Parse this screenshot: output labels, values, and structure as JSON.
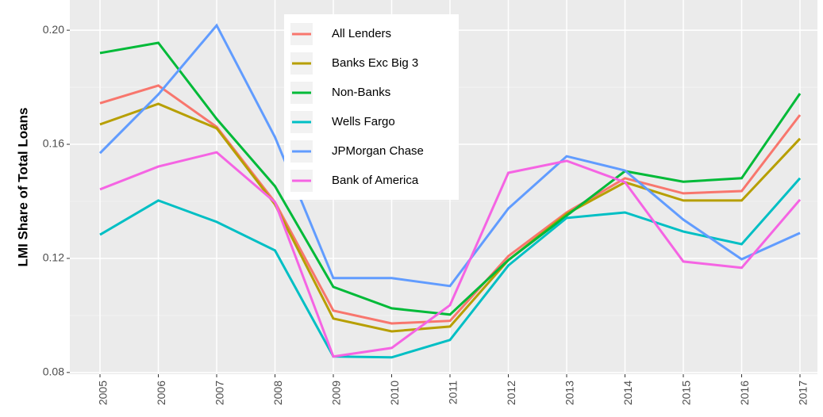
{
  "chart_data": {
    "type": "line",
    "y_label": "LMI Share of Total Loans",
    "categories": [
      "2005",
      "2006",
      "2007",
      "2008",
      "2009",
      "2010",
      "2011",
      "2012",
      "2013",
      "2014",
      "2015",
      "2016",
      "2017"
    ],
    "ylim": [
      0.0794,
      0.2106
    ],
    "yticks": [
      {
        "value": 0.08,
        "label": "0.08"
      },
      {
        "value": 0.12,
        "label": "0.12"
      },
      {
        "value": 0.16,
        "label": "0.16"
      },
      {
        "value": 0.2,
        "label": "0.20"
      }
    ],
    "grid": true,
    "legend": "top-left",
    "series": [
      {
        "name": "All Lenders",
        "color": "#F8766D",
        "values": [
          0.1744,
          0.1806,
          0.1661,
          0.1397,
          0.1017,
          0.0972,
          0.0981,
          0.1208,
          0.1361,
          0.1481,
          0.1428,
          0.1436,
          0.1703
        ]
      },
      {
        "name": "Banks Exc Big 3",
        "color": "#B79F00",
        "values": [
          0.167,
          0.1742,
          0.1656,
          0.1389,
          0.0989,
          0.0944,
          0.0961,
          0.1194,
          0.1356,
          0.1467,
          0.1403,
          0.1403,
          0.162
        ]
      },
      {
        "name": "Non-Banks",
        "color": "#00BA38",
        "values": [
          0.192,
          0.1956,
          0.1689,
          0.1453,
          0.11,
          0.1025,
          0.1003,
          0.1194,
          0.135,
          0.1506,
          0.1469,
          0.1481,
          0.1778
        ]
      },
      {
        "name": "Wells Fargo",
        "color": "#00BFC4",
        "values": [
          0.1283,
          0.1403,
          0.1328,
          0.1228,
          0.0856,
          0.0853,
          0.0914,
          0.1175,
          0.1342,
          0.1361,
          0.1294,
          0.125,
          0.1481
        ]
      },
      {
        "name": "JPMorgan Chase",
        "color": "#619CFF",
        "values": [
          0.1569,
          0.1775,
          0.2017,
          0.1625,
          0.1131,
          0.1131,
          0.1103,
          0.1375,
          0.1558,
          0.1508,
          0.1336,
          0.1197,
          0.1289
        ]
      },
      {
        "name": "Bank of America",
        "color": "#F564E3",
        "values": [
          0.1442,
          0.1522,
          0.1572,
          0.1397,
          0.0856,
          0.0886,
          0.1036,
          0.15,
          0.1542,
          0.1467,
          0.1189,
          0.1167,
          0.1406
        ]
      }
    ]
  }
}
